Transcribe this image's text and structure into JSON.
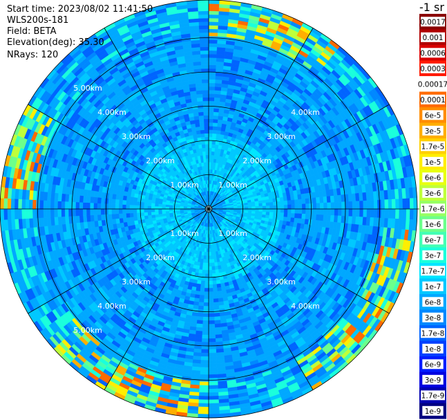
{
  "header": {
    "start_time": "Start time: 2023/08/02 11:41:50",
    "device": "WLS200s-181",
    "field": "Field: BETA",
    "elevation": "Elevation(deg): 35.30",
    "nrays": "NRays: 120"
  },
  "colorbar": {
    "unit_label": "-1 sr",
    "stops": [
      {
        "label": "0.0017",
        "color": "#8a0000"
      },
      {
        "label": "0.001",
        "color": "#b00000"
      },
      {
        "label": "0.0006",
        "color": "#d80000"
      },
      {
        "label": "0.0003",
        "color": "#ff1a00"
      },
      {
        "label": "0.00017",
        "color": "#ffffff"
      },
      {
        "label": "0.0001",
        "color": "#ff6a00"
      },
      {
        "label": "6e-5",
        "color": "#ff8c00"
      },
      {
        "label": "3e-5",
        "color": "#ffae00"
      },
      {
        "label": "1.7e-5",
        "color": "#ffd000"
      },
      {
        "label": "1e-5",
        "color": "#ffee00"
      },
      {
        "label": "6e-6",
        "color": "#e8ff10"
      },
      {
        "label": "3e-6",
        "color": "#bfff3a"
      },
      {
        "label": "1.7e-6",
        "color": "#96ff62"
      },
      {
        "label": "1e-6",
        "color": "#6cff8b"
      },
      {
        "label": "6e-7",
        "color": "#43ffb4"
      },
      {
        "label": "3e-7",
        "color": "#1affdc"
      },
      {
        "label": "1.7e-7",
        "color": "#00e6ff"
      },
      {
        "label": "1e-7",
        "color": "#00c8ff"
      },
      {
        "label": "6e-8",
        "color": "#00a8ff"
      },
      {
        "label": "3e-8",
        "color": "#0088ff"
      },
      {
        "label": "1.7e-8",
        "color": "#0064ff"
      },
      {
        "label": "1e-8",
        "color": "#0040ff"
      },
      {
        "label": "6e-9",
        "color": "#001cff"
      },
      {
        "label": "3e-9",
        "color": "#0000e0"
      },
      {
        "label": "1.7e-9",
        "color": "#0000b0"
      },
      {
        "label": "1e-9",
        "color": "#000080"
      }
    ]
  },
  "chart_data": {
    "type": "heatmap",
    "projection": "polar",
    "field": "BETA",
    "elevation_deg": 35.3,
    "nrays": 120,
    "range_rings_km": [
      1,
      2,
      3,
      4,
      5
    ],
    "ring_labels": [
      "1.00km",
      "2.00km",
      "3.00km",
      "4.00km",
      "5.00km"
    ],
    "azimuth_spokes_deg": [
      0,
      30,
      60,
      90,
      120,
      150,
      180,
      210,
      240,
      270,
      300,
      330
    ],
    "max_range_km": 6.1,
    "colorscale": "log",
    "value_range": [
      1e-09,
      0.0017
    ],
    "pattern": {
      "near_center_value": 3e-07,
      "inner_ring_value": 1.7e-07,
      "outer_background_value": 6e-08,
      "dominant_colors": [
        "#00a8ff",
        "#0088ff",
        "#00c8ff"
      ],
      "high_edge_sectors_deg": [
        [
          0,
          40
        ],
        [
          95,
          150
        ],
        [
          180,
          230
        ],
        [
          270,
          300
        ]
      ],
      "edge_high_value": 1e-05
    }
  },
  "colors": {
    "ring_line": "#000000",
    "background": "#ffffff"
  }
}
